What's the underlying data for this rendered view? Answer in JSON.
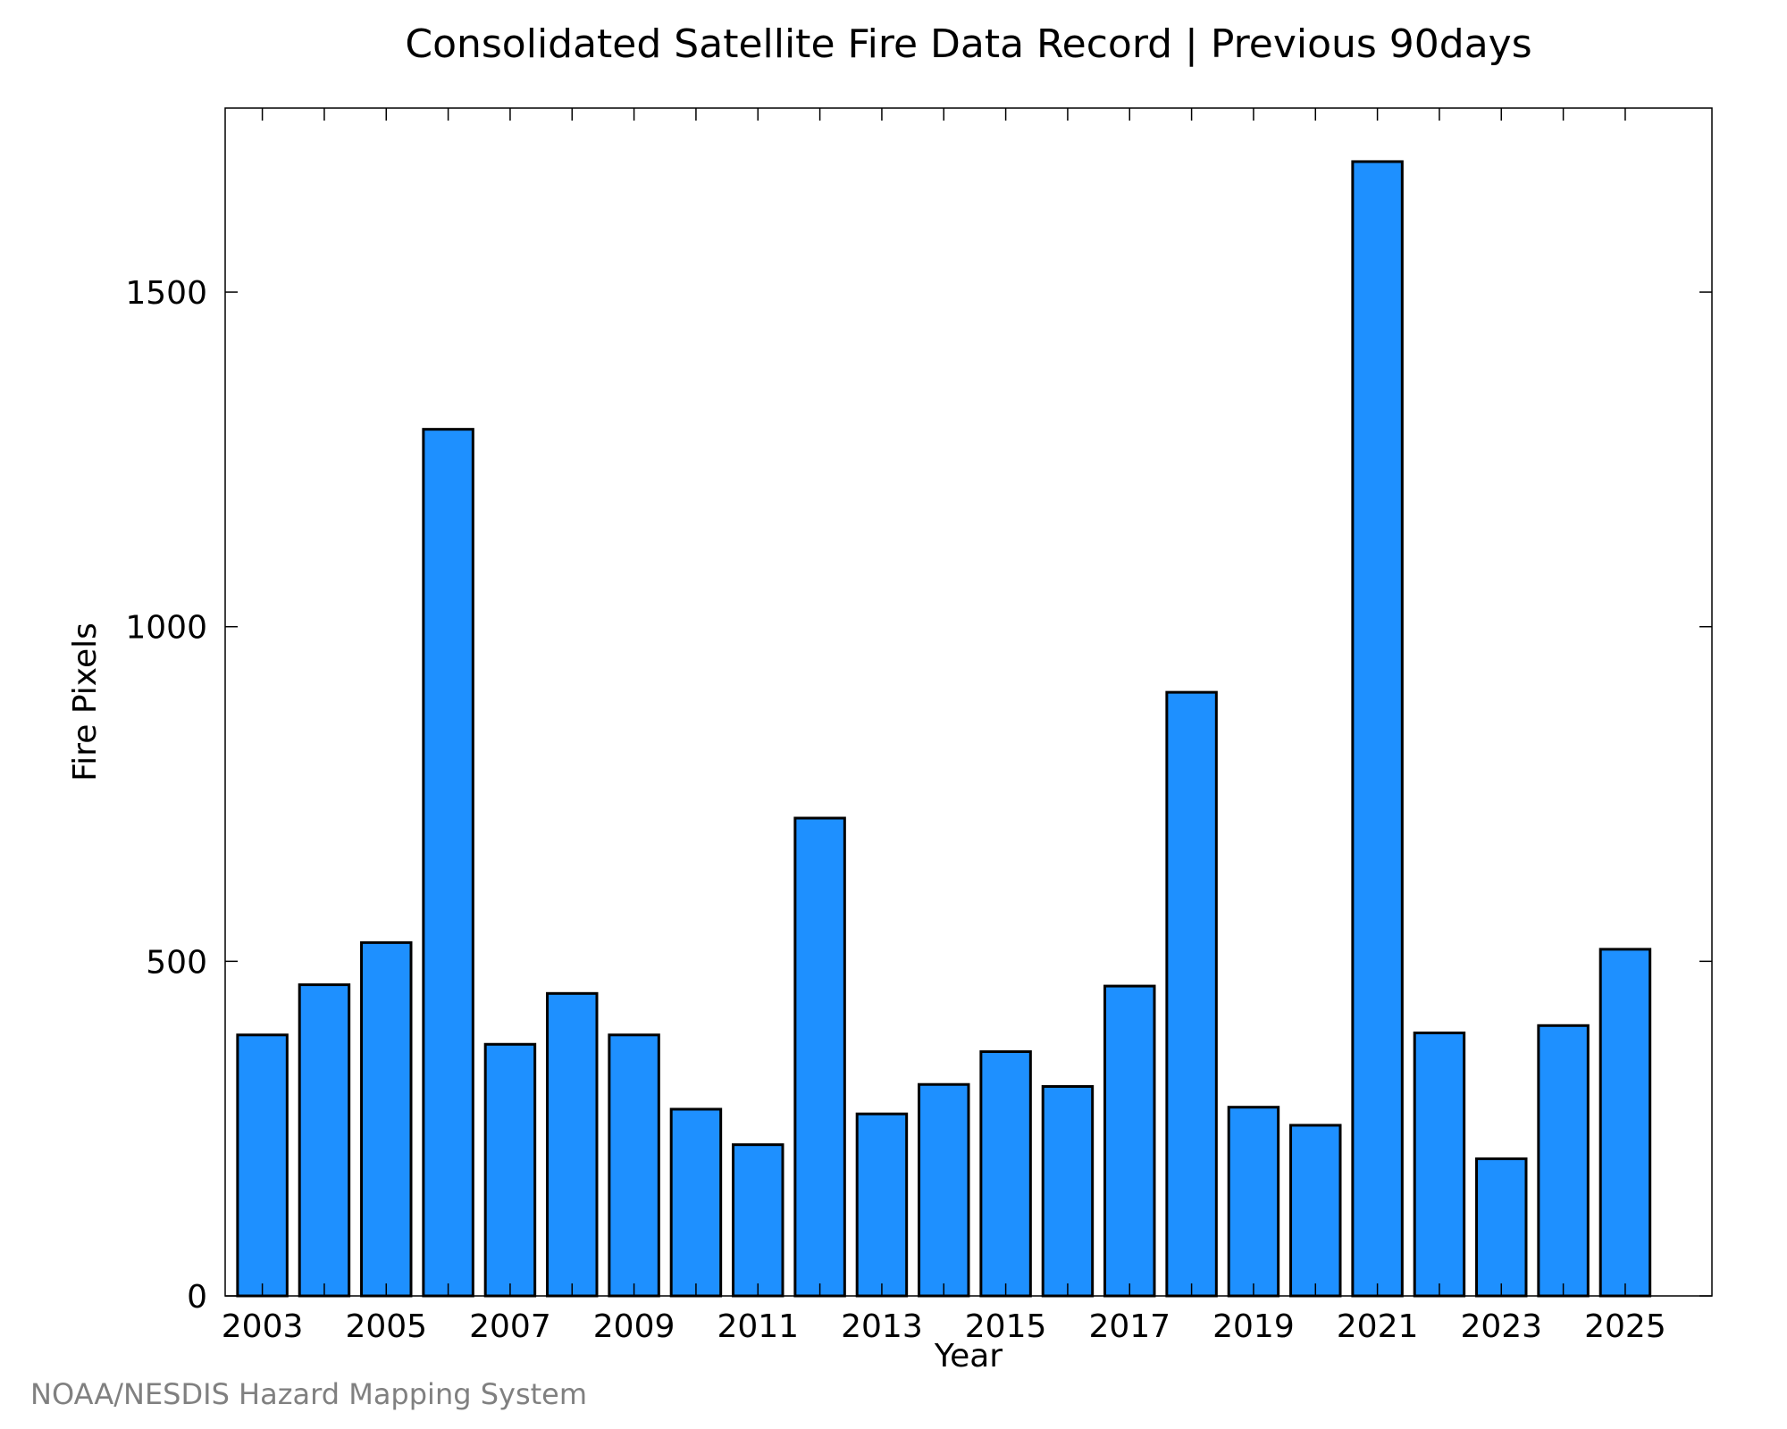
{
  "chart_data": {
    "type": "bar",
    "title": "Consolidated Satellite Fire Data Record | Previous 90days",
    "xlabel": "Year",
    "ylabel": "Fire Pixels",
    "categories": [
      2003,
      2004,
      2005,
      2006,
      2007,
      2008,
      2009,
      2010,
      2011,
      2012,
      2013,
      2014,
      2015,
      2016,
      2017,
      2018,
      2019,
      2020,
      2021,
      2022,
      2023,
      2024,
      2025
    ],
    "values": [
      390,
      465,
      528,
      1295,
      376,
      452,
      390,
      279,
      226,
      714,
      272,
      316,
      365,
      313,
      463,
      902,
      282,
      255,
      1695,
      393,
      205,
      404,
      518
    ],
    "x_ticks": [
      "2003",
      "2005",
      "2007",
      "2009",
      "2011",
      "2013",
      "2015",
      "2017",
      "2019",
      "2021",
      "2023",
      "2025"
    ],
    "y_ticks": [
      "0",
      "500",
      "1000",
      "1500"
    ],
    "ylim": [
      0,
      1775
    ],
    "xlim": [
      2002.4,
      2026.4
    ],
    "grid": false,
    "bar_color": "#1e90ff",
    "bar_edge_color": "#000000",
    "credit": "NOAA/NESDIS Hazard Mapping System"
  }
}
